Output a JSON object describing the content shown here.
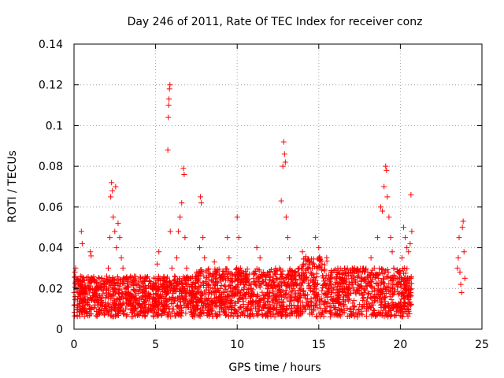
{
  "chart_data": {
    "type": "scatter",
    "title": "Day 246 of 2011, Rate Of TEC Index for receiver conz",
    "xlabel": "GPS time / hours",
    "ylabel": "ROTI / TECUs",
    "xlim": [
      0,
      25
    ],
    "ylim": [
      0,
      0.14
    ],
    "xticks": [
      0,
      5,
      10,
      15,
      20,
      25
    ],
    "yticks": [
      0,
      0.02,
      0.04,
      0.06,
      0.08,
      0.1,
      0.12,
      0.14
    ],
    "xtick_labels": [
      "0",
      "5",
      "10",
      "15",
      "20",
      "25"
    ],
    "ytick_labels": [
      "0",
      "0.02",
      "0.04",
      "0.06",
      "0.08",
      "0.1",
      "0.12",
      "0.14"
    ],
    "grid": true,
    "marker": "+",
    "color": "#ff0000",
    "series": [
      {
        "points": [
          [
            0.05,
            0.028
          ],
          [
            0.1,
            0.03
          ],
          [
            0.2,
            0.024
          ],
          [
            0.25,
            0.022
          ],
          [
            0.3,
            0.018
          ],
          [
            0.35,
            0.015
          ],
          [
            0.4,
            0.026
          ],
          [
            0.45,
            0.048
          ],
          [
            0.5,
            0.042
          ],
          [
            0.55,
            0.02
          ],
          [
            0.6,
            0.017
          ],
          [
            0.7,
            0.014
          ],
          [
            0.8,
            0.013
          ],
          [
            0.9,
            0.02
          ],
          [
            1.0,
            0.038
          ],
          [
            1.05,
            0.036
          ],
          [
            1.1,
            0.025
          ],
          [
            1.2,
            0.018
          ],
          [
            1.3,
            0.016
          ],
          [
            1.4,
            0.014
          ],
          [
            1.5,
            0.02
          ],
          [
            1.6,
            0.012
          ],
          [
            1.7,
            0.015
          ],
          [
            1.8,
            0.019
          ],
          [
            1.9,
            0.022
          ],
          [
            2.0,
            0.026
          ],
          [
            2.1,
            0.03
          ],
          [
            2.2,
            0.045
          ],
          [
            2.25,
            0.065
          ],
          [
            2.3,
            0.072
          ],
          [
            2.35,
            0.068
          ],
          [
            2.4,
            0.055
          ],
          [
            2.5,
            0.048
          ],
          [
            2.55,
            0.07
          ],
          [
            2.6,
            0.04
          ],
          [
            2.7,
            0.052
          ],
          [
            2.8,
            0.045
          ],
          [
            2.9,
            0.035
          ],
          [
            3.0,
            0.03
          ],
          [
            3.1,
            0.025
          ],
          [
            3.2,
            0.02
          ],
          [
            3.3,
            0.018
          ],
          [
            3.4,
            0.015
          ],
          [
            3.5,
            0.012
          ],
          [
            3.6,
            0.016
          ],
          [
            3.7,
            0.019
          ],
          [
            3.8,
            0.014
          ],
          [
            3.9,
            0.012
          ],
          [
            4.0,
            0.015
          ],
          [
            4.2,
            0.018
          ],
          [
            4.4,
            0.014
          ],
          [
            4.6,
            0.016
          ],
          [
            4.8,
            0.012
          ],
          [
            5.0,
            0.014
          ],
          [
            5.1,
            0.032
          ],
          [
            5.2,
            0.038
          ],
          [
            5.3,
            0.022
          ],
          [
            5.4,
            0.016
          ],
          [
            5.5,
            0.014
          ],
          [
            5.6,
            0.018
          ],
          [
            5.7,
            0.025
          ],
          [
            5.75,
            0.088
          ],
          [
            5.78,
            0.104
          ],
          [
            5.8,
            0.11
          ],
          [
            5.82,
            0.113
          ],
          [
            5.85,
            0.118
          ],
          [
            5.88,
            0.12
          ],
          [
            5.9,
            0.048
          ],
          [
            6.0,
            0.03
          ],
          [
            6.1,
            0.02
          ],
          [
            6.2,
            0.015
          ],
          [
            6.3,
            0.035
          ],
          [
            6.4,
            0.048
          ],
          [
            6.5,
            0.055
          ],
          [
            6.6,
            0.062
          ],
          [
            6.7,
            0.079
          ],
          [
            6.75,
            0.076
          ],
          [
            6.8,
            0.045
          ],
          [
            6.9,
            0.03
          ],
          [
            7.0,
            0.022
          ],
          [
            7.1,
            0.018
          ],
          [
            7.2,
            0.014
          ],
          [
            7.3,
            0.023
          ],
          [
            7.4,
            0.016
          ],
          [
            7.5,
            0.012
          ],
          [
            7.6,
            0.018
          ],
          [
            7.7,
            0.04
          ],
          [
            7.75,
            0.065
          ],
          [
            7.8,
            0.062
          ],
          [
            7.9,
            0.045
          ],
          [
            8.0,
            0.035
          ],
          [
            8.1,
            0.028
          ],
          [
            8.2,
            0.022
          ],
          [
            8.3,
            0.018
          ],
          [
            8.4,
            0.015
          ],
          [
            8.5,
            0.02
          ],
          [
            8.6,
            0.033
          ],
          [
            8.7,
            0.025
          ],
          [
            8.8,
            0.02
          ],
          [
            8.9,
            0.016
          ],
          [
            9.0,
            0.014
          ],
          [
            9.2,
            0.018
          ],
          [
            9.4,
            0.045
          ],
          [
            9.5,
            0.035
          ],
          [
            9.6,
            0.025
          ],
          [
            9.8,
            0.02
          ],
          [
            10.0,
            0.055
          ],
          [
            10.1,
            0.045
          ],
          [
            10.2,
            0.03
          ],
          [
            10.4,
            0.022
          ],
          [
            10.6,
            0.018
          ],
          [
            10.8,
            0.016
          ],
          [
            11.0,
            0.025
          ],
          [
            11.2,
            0.04
          ],
          [
            11.4,
            0.035
          ],
          [
            11.6,
            0.028
          ],
          [
            11.8,
            0.022
          ],
          [
            12.0,
            0.018
          ],
          [
            12.2,
            0.02
          ],
          [
            12.4,
            0.025
          ],
          [
            12.6,
            0.03
          ],
          [
            12.7,
            0.063
          ],
          [
            12.8,
            0.08
          ],
          [
            12.85,
            0.092
          ],
          [
            12.9,
            0.086
          ],
          [
            12.95,
            0.082
          ],
          [
            13.0,
            0.055
          ],
          [
            13.1,
            0.045
          ],
          [
            13.2,
            0.035
          ],
          [
            13.4,
            0.028
          ],
          [
            13.6,
            0.022
          ],
          [
            13.8,
            0.03
          ],
          [
            14.0,
            0.038
          ],
          [
            14.2,
            0.025
          ],
          [
            14.4,
            0.02
          ],
          [
            14.6,
            0.03
          ],
          [
            14.8,
            0.045
          ],
          [
            15.0,
            0.04
          ],
          [
            15.2,
            0.032
          ],
          [
            15.4,
            0.025
          ],
          [
            15.6,
            0.02
          ],
          [
            15.8,
            0.018
          ],
          [
            16.0,
            0.022
          ],
          [
            16.2,
            0.028
          ],
          [
            16.4,
            0.024
          ],
          [
            16.6,
            0.018
          ],
          [
            16.8,
            0.02
          ],
          [
            17.0,
            0.025
          ],
          [
            17.2,
            0.03
          ],
          [
            17.4,
            0.022
          ],
          [
            17.6,
            0.02
          ],
          [
            17.8,
            0.024
          ],
          [
            18.0,
            0.028
          ],
          [
            18.2,
            0.035
          ],
          [
            18.4,
            0.03
          ],
          [
            18.6,
            0.045
          ],
          [
            18.8,
            0.06
          ],
          [
            18.9,
            0.058
          ],
          [
            19.0,
            0.07
          ],
          [
            19.1,
            0.08
          ],
          [
            19.15,
            0.078
          ],
          [
            19.2,
            0.065
          ],
          [
            19.3,
            0.055
          ],
          [
            19.4,
            0.045
          ],
          [
            19.5,
            0.038
          ],
          [
            19.6,
            0.03
          ],
          [
            19.8,
            0.025
          ],
          [
            20.0,
            0.022
          ],
          [
            20.1,
            0.035
          ],
          [
            20.2,
            0.05
          ],
          [
            20.3,
            0.045
          ],
          [
            20.4,
            0.04
          ],
          [
            20.5,
            0.038
          ],
          [
            20.6,
            0.042
          ],
          [
            20.65,
            0.066
          ],
          [
            20.7,
            0.048
          ],
          [
            23.5,
            0.03
          ],
          [
            23.55,
            0.035
          ],
          [
            23.6,
            0.045
          ],
          [
            23.65,
            0.028
          ],
          [
            23.7,
            0.022
          ],
          [
            23.75,
            0.018
          ],
          [
            23.8,
            0.05
          ],
          [
            23.85,
            0.053
          ],
          [
            23.9,
            0.038
          ],
          [
            23.95,
            0.025
          ]
        ]
      }
    ],
    "band": {
      "x_start": 0,
      "x_end": 20.7,
      "base_min": 0.006,
      "base_max": 0.026,
      "note_seed": 246
    }
  }
}
